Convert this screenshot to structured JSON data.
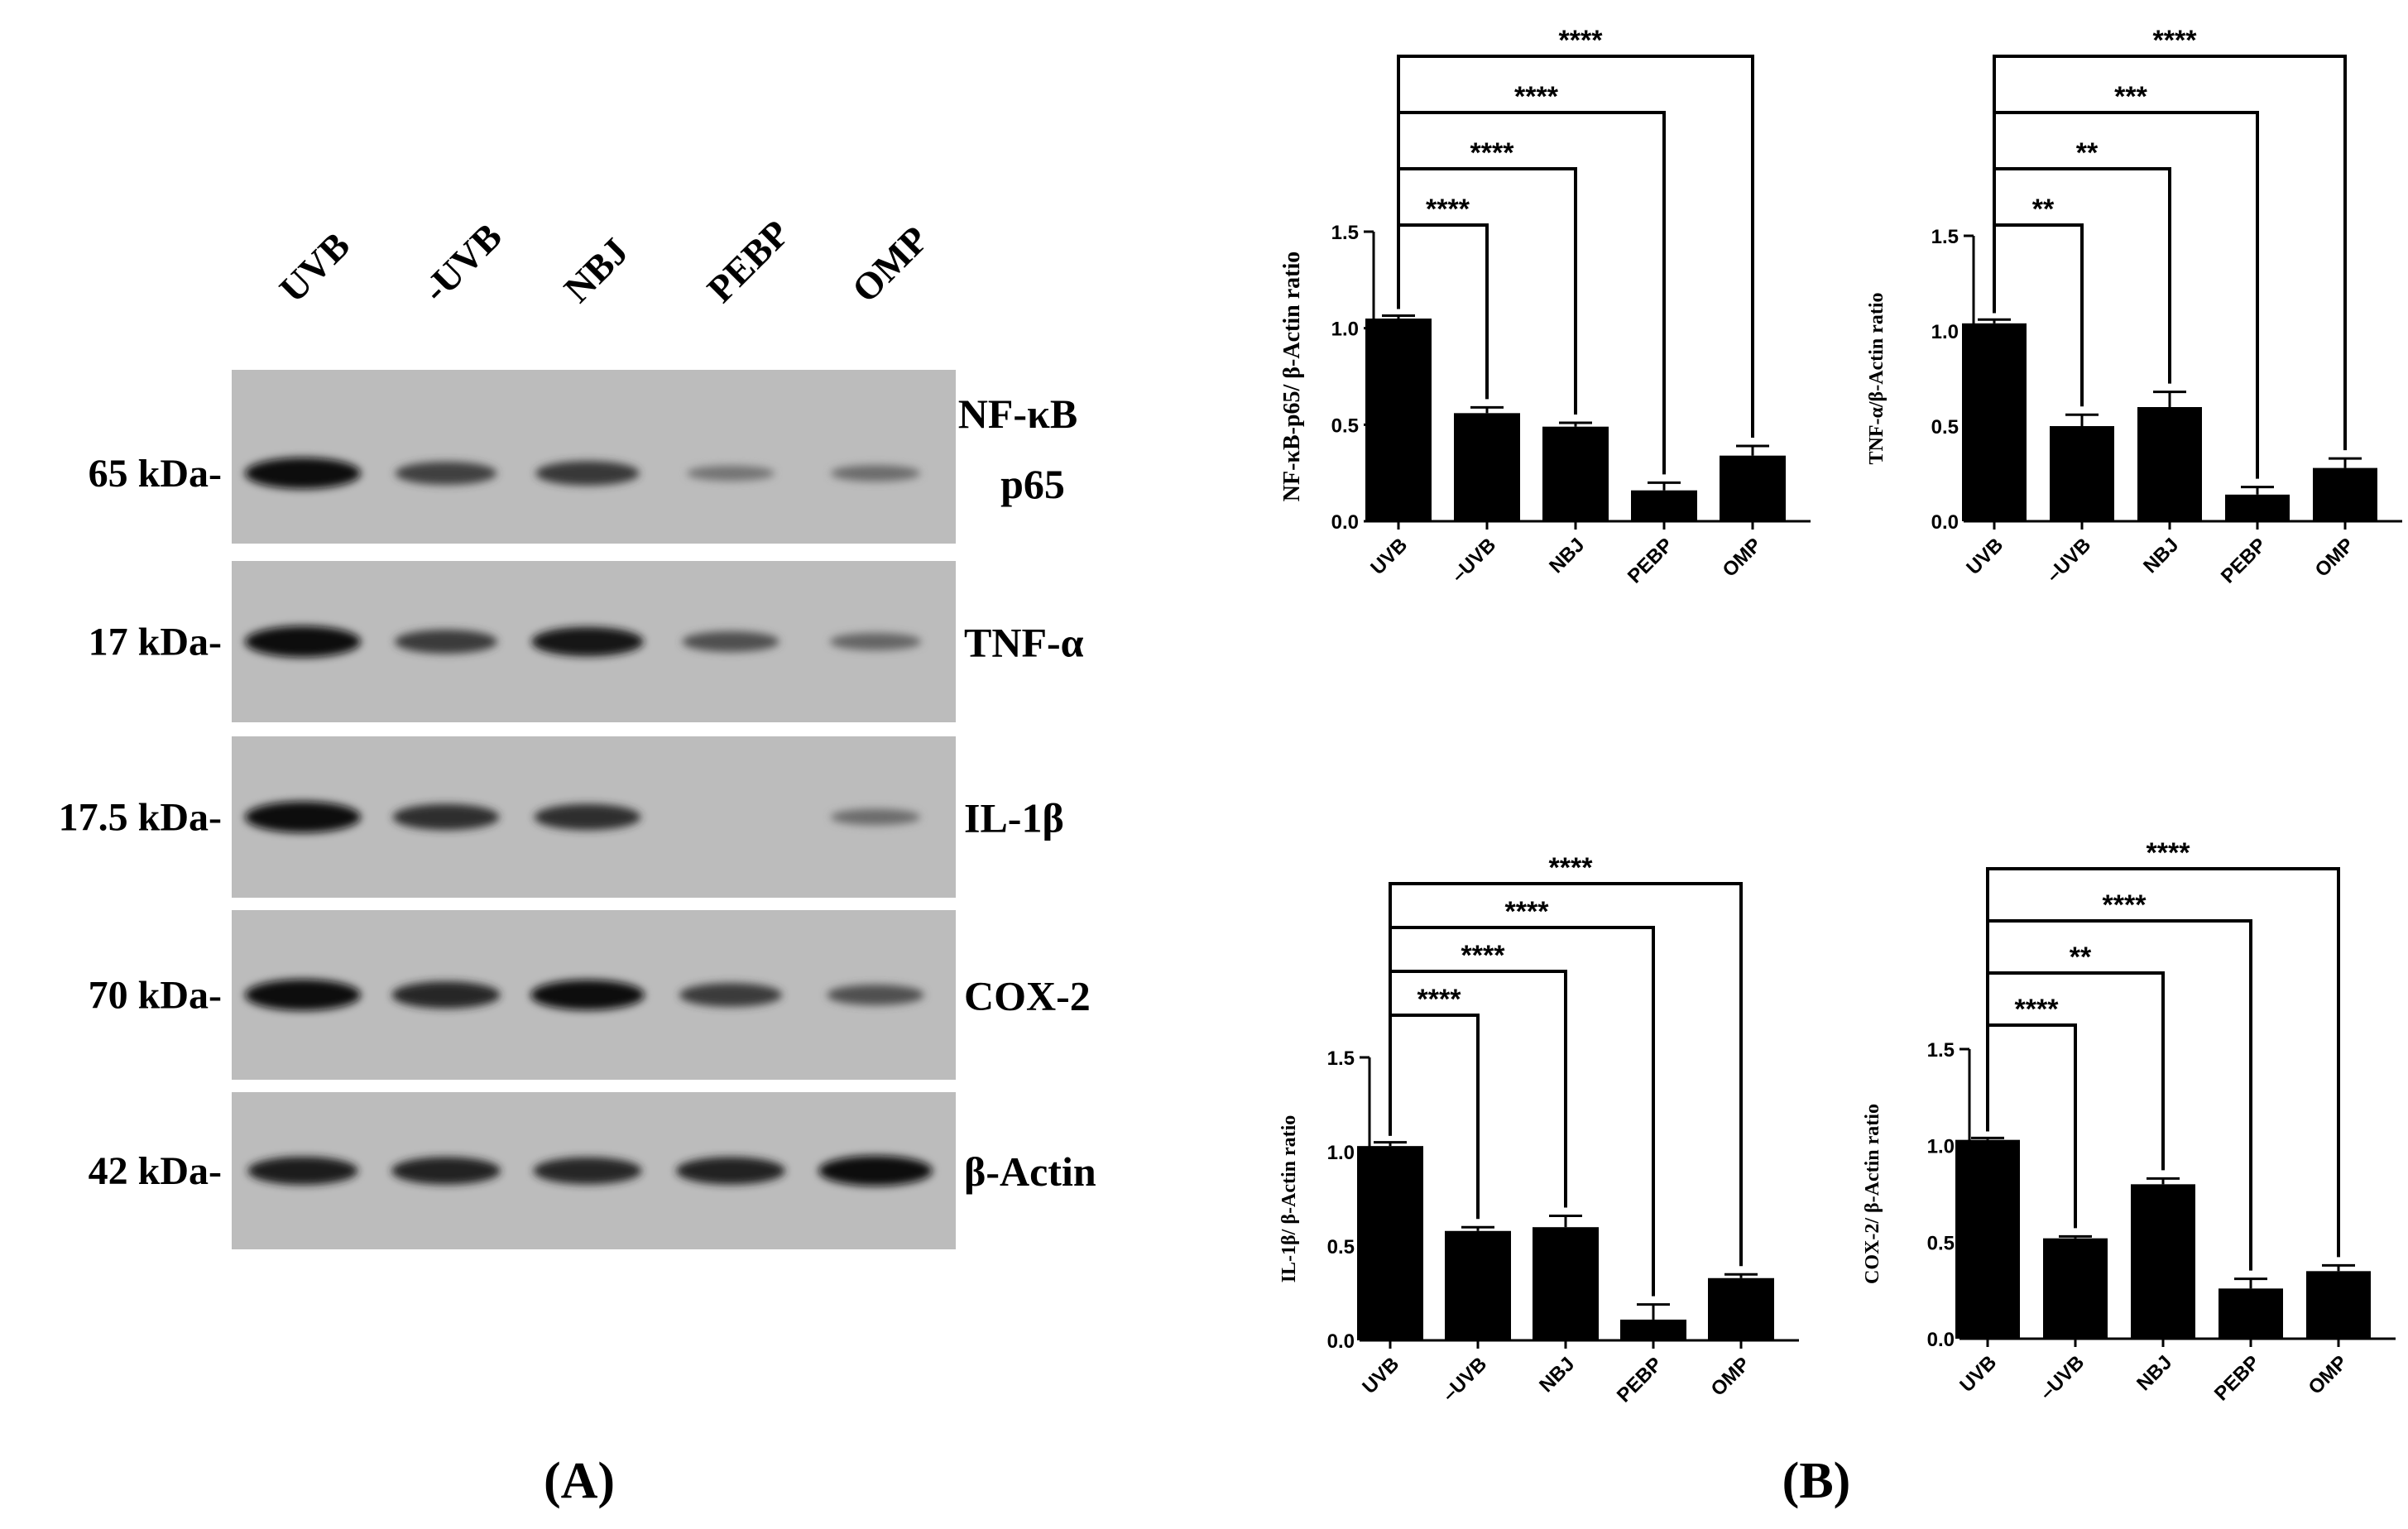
{
  "western_blot": {
    "lanes": [
      "UVB",
      "-UVB",
      "NBJ",
      "PEBP",
      "OMP"
    ],
    "panels": [
      {
        "weight": "65 kDa-",
        "protein": [
          "NF-κB",
          "p65"
        ],
        "intensity": [
          1.0,
          0.62,
          0.68,
          0.25,
          0.3
        ]
      },
      {
        "weight": "17 kDa-",
        "protein": [
          "TNF-α"
        ],
        "intensity": [
          1.0,
          0.65,
          0.9,
          0.5,
          0.35
        ]
      },
      {
        "weight": "17.5 kDa-",
        "protein": [
          "IL-1β"
        ],
        "intensity": [
          1.0,
          0.75,
          0.75,
          0.0,
          0.3
        ]
      },
      {
        "weight": "70 kDa-",
        "protein": [
          "COX-2"
        ],
        "intensity": [
          1.0,
          0.8,
          0.95,
          0.65,
          0.5
        ]
      },
      {
        "weight": "42 kDa-",
        "protein": [
          "β-Actin"
        ],
        "intensity": [
          0.85,
          0.82,
          0.8,
          0.82,
          0.95
        ]
      }
    ],
    "panel_label": "(A)"
  },
  "panel_b_label": "(B)",
  "chart_data": [
    {
      "type": "bar",
      "categories": [
        "UVB",
        "–UVB",
        "NBJ",
        "PEBP",
        "OMP"
      ],
      "values": [
        1.05,
        0.56,
        0.49,
        0.16,
        0.34
      ],
      "errors": [
        0.015,
        0.03,
        0.02,
        0.04,
        0.05
      ],
      "ylabel": "NF-κB-p65/ β-Actin ratio",
      "ylim": [
        0,
        1.5
      ],
      "yticks": [
        "0.0",
        "0.5",
        "1.0",
        "1.5"
      ],
      "significance": [
        "****",
        "****",
        "****",
        "****"
      ],
      "colors": {
        "bar": "#000000"
      }
    },
    {
      "type": "bar",
      "categories": [
        "UVB",
        "–UVB",
        "NBJ",
        "PEBP",
        "OMP"
      ],
      "values": [
        1.04,
        0.5,
        0.6,
        0.14,
        0.28
      ],
      "errors": [
        0.02,
        0.06,
        0.08,
        0.04,
        0.05
      ],
      "ylabel": "TNF-α/β-Actin ratio",
      "ylim": [
        0,
        1.5
      ],
      "yticks": [
        "0.0",
        "0.5",
        "1.0",
        "1.5"
      ],
      "significance": [
        "**",
        "**",
        "***",
        "****"
      ],
      "colors": {
        "bar": "#000000"
      }
    },
    {
      "type": "bar",
      "categories": [
        "UVB",
        "–UVB",
        "NBJ",
        "PEBP",
        "OMP"
      ],
      "values": [
        1.03,
        0.58,
        0.6,
        0.11,
        0.33
      ],
      "errors": [
        0.02,
        0.02,
        0.06,
        0.08,
        0.02
      ],
      "ylabel": "IL-1β/ β-Actin ratio",
      "ylim": [
        0,
        1.5
      ],
      "yticks": [
        "0.0",
        "0.5",
        "1.0",
        "1.5"
      ],
      "significance": [
        "****",
        "****",
        "****",
        "****"
      ],
      "colors": {
        "bar": "#000000"
      }
    },
    {
      "type": "bar",
      "categories": [
        "UVB",
        "–UVB",
        "NBJ",
        "PEBP",
        "OMP"
      ],
      "values": [
        1.03,
        0.52,
        0.8,
        0.26,
        0.35
      ],
      "errors": [
        0.01,
        0.01,
        0.03,
        0.05,
        0.03
      ],
      "ylabel": "COX-2/ β-Actin ratio",
      "ylim": [
        0,
        1.5
      ],
      "yticks": [
        "0.0",
        "0.5",
        "1.0",
        "1.5"
      ],
      "significance": [
        "****",
        "**",
        "****",
        "****"
      ],
      "colors": {
        "bar": "#000000"
      }
    }
  ]
}
